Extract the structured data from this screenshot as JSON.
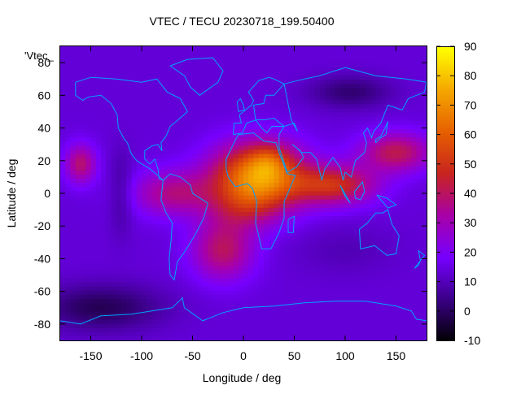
{
  "chart_data": {
    "type": "heatmap",
    "title": "VTEC / TECU 20230718_199.50400",
    "xlabel": "Longitude / deg",
    "ylabel": "Latitude / deg",
    "key_label": "'Vtec_",
    "xlim": [
      -180,
      180
    ],
    "ylim": [
      -90,
      90
    ],
    "x_ticks": [
      -150,
      -100,
      -50,
      0,
      50,
      100,
      150
    ],
    "y_ticks": [
      -80,
      -60,
      -40,
      -20,
      0,
      20,
      40,
      60,
      80
    ],
    "colorbar": {
      "range": [
        -10,
        90
      ],
      "ticks": [
        -10,
        0,
        10,
        20,
        30,
        40,
        50,
        60,
        70,
        80,
        90
      ],
      "palette": [
        "#000000",
        "#3a0086",
        "#7600ff",
        "#a800a8",
        "#c8241f",
        "#e66000",
        "#f5a800",
        "#ffff00"
      ]
    },
    "features": [
      {
        "name": "equatorial-anomaly-africa",
        "lon": 15,
        "lat": 10,
        "value": 72
      },
      {
        "name": "equatorial-anomaly-indian-ocean",
        "lon": 90,
        "lat": 5,
        "value": 50
      },
      {
        "name": "south-atlantic-band",
        "lon": -20,
        "lat": -35,
        "value": 42
      },
      {
        "name": "polar-minimum-south",
        "lon": -140,
        "lat": -70,
        "value": -3
      },
      {
        "name": "north-asia-minimum",
        "lon": 105,
        "lat": 62,
        "value": 2
      }
    ],
    "coastline_color": "#00a3ff"
  }
}
